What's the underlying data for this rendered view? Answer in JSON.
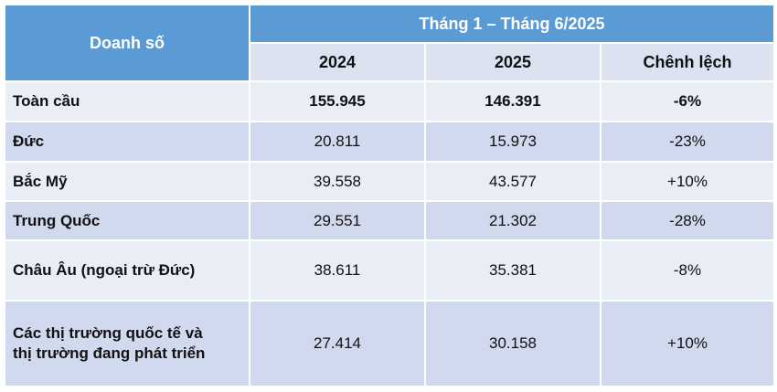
{
  "header": {
    "row_label": "Doanh số",
    "period": "Tháng 1 – Tháng 6/2025",
    "columns": [
      "2024",
      "2025",
      "Chênh lệch"
    ]
  },
  "rows": [
    {
      "label": "Toàn cầu",
      "v2024": "155.945",
      "v2025": "146.391",
      "diff": "-6%"
    },
    {
      "label": "Đức",
      "v2024": "20.811",
      "v2025": "15.973",
      "diff": "-23%"
    },
    {
      "label": "Bắc Mỹ",
      "v2024": "39.558",
      "v2025": "43.577",
      "diff": "+10%"
    },
    {
      "label": "Trung Quốc",
      "v2024": "29.551",
      "v2025": "21.302",
      "diff": "-28%"
    },
    {
      "label": "Châu Âu (ngoại trừ Đức)",
      "v2024": "38.611",
      "v2025": "35.381",
      "diff": "-8%"
    },
    {
      "label_line1": "Các thị trường quốc tế và",
      "label_line2": "thị trường đang phát triển",
      "v2024": "27.414",
      "v2025": "30.158",
      "diff": "+10%"
    }
  ]
}
